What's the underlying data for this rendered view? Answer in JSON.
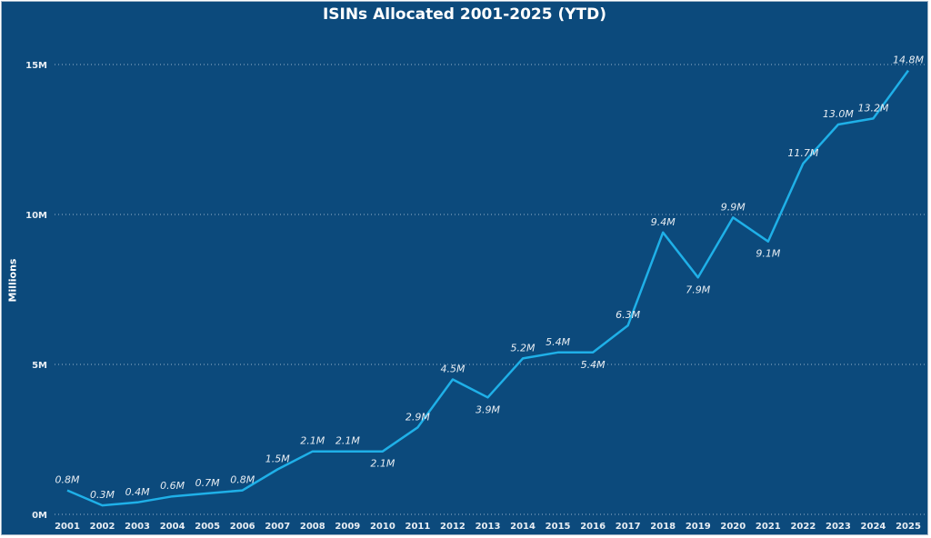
{
  "chart_data": {
    "type": "line",
    "title": "ISINs Allocated 2001-2025 (YTD)",
    "ylabel": "Millions",
    "xlabel": "",
    "categories": [
      "2001",
      "2002",
      "2003",
      "2004",
      "2005",
      "2006",
      "2007",
      "2008",
      "2009",
      "2010",
      "2011",
      "2012",
      "2013",
      "2014",
      "2015",
      "2016",
      "2017",
      "2018",
      "2019",
      "2020",
      "2021",
      "2022",
      "2023",
      "2024",
      "2025"
    ],
    "values": [
      0.8,
      0.3,
      0.4,
      0.6,
      0.7,
      0.8,
      1.5,
      2.1,
      2.1,
      2.1,
      2.9,
      4.5,
      3.9,
      5.2,
      5.4,
      5.4,
      6.3,
      9.4,
      7.9,
      9.9,
      9.1,
      11.7,
      13.0,
      13.2,
      14.8
    ],
    "data_labels": [
      "0.8M",
      "0.3M",
      "0.4M",
      "0.6M",
      "0.7M",
      "0.8M",
      "1.5M",
      "2.1M",
      "2.1M",
      "2.1M",
      "2.9M",
      "4.5M",
      "3.9M",
      "5.2M",
      "5.4M",
      "5.4M",
      "6.3M",
      "9.4M",
      "7.9M",
      "9.9M",
      "9.1M",
      "11.7M",
      "13.0M",
      "13.2M",
      "14.8M"
    ],
    "label_below": [
      "2010",
      "2013",
      "2016",
      "2019",
      "2021"
    ],
    "yticks": [
      0,
      5,
      10,
      15
    ],
    "ytick_labels": [
      "0M",
      "5M",
      "10M",
      "15M"
    ],
    "ylim": [
      0,
      15
    ],
    "grid": "horizontal dotted",
    "legend": "none",
    "colors": {
      "background": "#0c4a7c",
      "line": "#1fb0e8",
      "text": "#ffffff"
    }
  }
}
